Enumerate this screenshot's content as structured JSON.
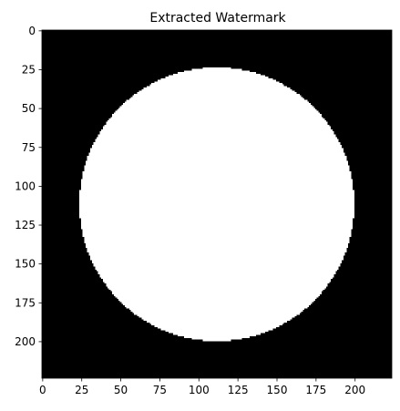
{
  "chart_data": {
    "type": "heatmap",
    "title": "Extracted Watermark",
    "xlabel": "",
    "ylabel": "",
    "image_size": [
      224,
      224
    ],
    "colormap": "gray",
    "background_value": 0,
    "shape": {
      "kind": "circle",
      "center_x": 112,
      "center_y": 112,
      "radius": 88,
      "value": 1
    },
    "xlim": [
      -0.5,
      223.5
    ],
    "ylim": [
      223.5,
      -0.5
    ],
    "x_ticks": [
      0,
      25,
      50,
      75,
      100,
      125,
      150,
      175,
      200
    ],
    "y_ticks": [
      0,
      25,
      50,
      75,
      100,
      125,
      150,
      175,
      200
    ],
    "grid": false,
    "colors": {
      "background": "#000000",
      "foreground": "#ffffff",
      "axes_edge": "#000000"
    }
  }
}
